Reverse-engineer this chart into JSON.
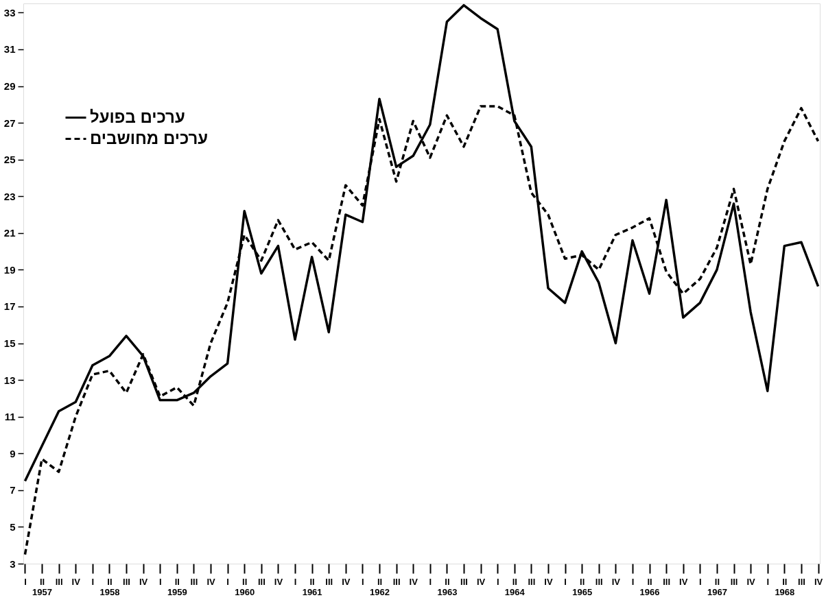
{
  "chart_data": {
    "type": "line",
    "categories": [
      "I",
      "II\n1957",
      "III",
      "IV",
      "I",
      "II\n1958",
      "III",
      "IV",
      "I",
      "II\n1959",
      "III",
      "IV",
      "I",
      "II\n1960",
      "III",
      "IV",
      "I",
      "II\n1961",
      "III",
      "IV",
      "I",
      "II\n1962",
      "III",
      "IV",
      "I",
      "II\n1963",
      "III",
      "IV",
      "I",
      "II\n1964",
      "III",
      "IV",
      "I",
      "II\n1965",
      "III",
      "IV",
      "I",
      "II\n1966",
      "III",
      "IV",
      "I",
      "II\n1967",
      "III",
      "IV",
      "I",
      "II\n1968",
      "III",
      "IV"
    ],
    "series": [
      {
        "name": "ערכים בפועל",
        "color": "#000000",
        "line_style": "solid",
        "values": [
          7.5,
          9.4,
          11.3,
          11.8,
          13.8,
          14.3,
          15.4,
          14.3,
          11.9,
          11.9,
          12.3,
          13.2,
          13.9,
          22.2,
          18.8,
          20.3,
          15.2,
          19.7,
          15.6,
          22.0,
          21.6,
          28.3,
          24.6,
          25.2,
          26.9,
          32.5,
          33.4,
          32.7,
          32.1,
          27.1,
          25.7,
          18.0,
          17.2,
          20.0,
          18.3,
          15.0,
          20.6,
          17.7,
          22.8,
          16.4,
          17.2,
          19.0,
          22.6,
          16.7,
          12.4,
          20.3,
          20.5,
          18.1
        ]
      },
      {
        "name": "ערכים מחושבים",
        "color": "#000000",
        "line_style": "dashed",
        "values": [
          3.5,
          8.7,
          8.0,
          11.0,
          13.3,
          13.5,
          12.3,
          14.4,
          12.1,
          12.6,
          11.6,
          15.0,
          17.2,
          20.9,
          19.5,
          21.7,
          20.1,
          20.5,
          19.5,
          23.6,
          22.5,
          27.2,
          23.8,
          27.1,
          25.1,
          27.4,
          25.7,
          27.9,
          27.9,
          27.4,
          23.2,
          22.0,
          19.6,
          19.8,
          19.0,
          20.9,
          21.3,
          21.8,
          18.9,
          17.7,
          18.5,
          20.2,
          23.4,
          19.3,
          23.4,
          26.0,
          27.8,
          26.0
        ]
      }
    ],
    "ylim": [
      3,
      33.5
    ],
    "yticks": [
      3,
      5,
      7,
      9,
      11,
      13,
      15,
      17,
      19,
      21,
      23,
      25,
      27,
      29,
      31,
      33
    ],
    "grid": false,
    "legend": "top left"
  }
}
